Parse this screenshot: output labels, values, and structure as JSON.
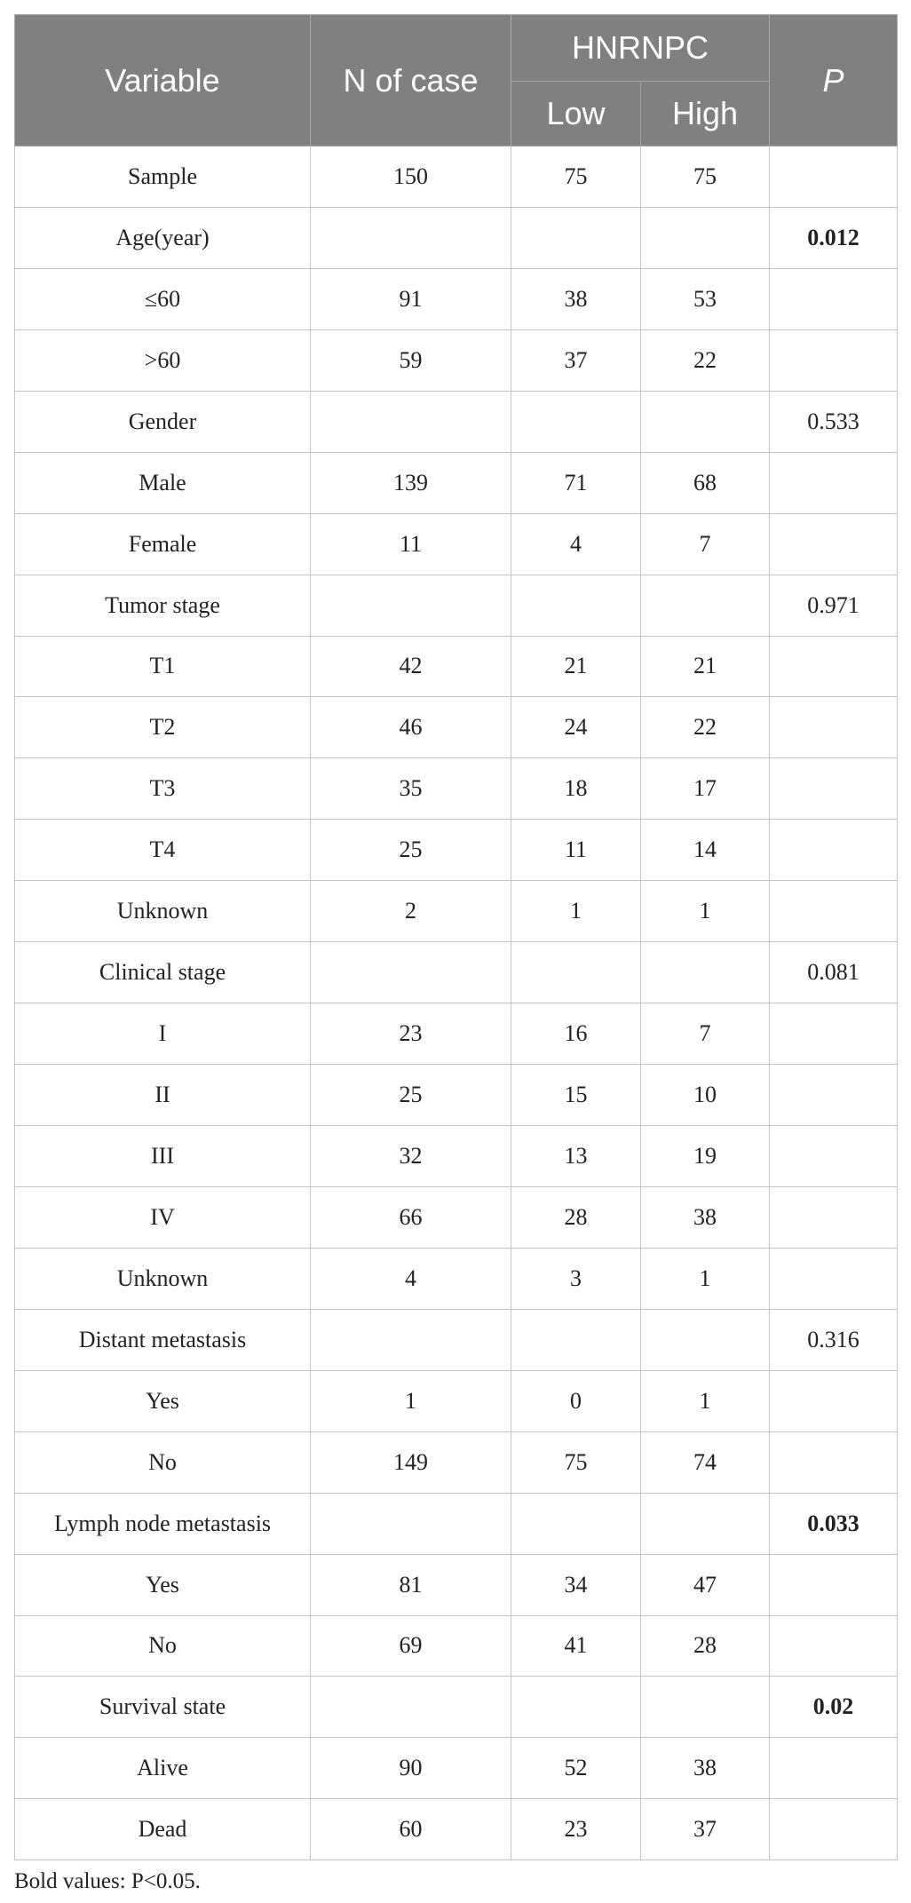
{
  "table": {
    "headers": {
      "variable": "Variable",
      "n_of_case": "N of case",
      "group": "HNRNPC",
      "low": "Low",
      "high": "High",
      "p": "P"
    },
    "rows": [
      {
        "variable": "Sample",
        "n": "150",
        "low": "75",
        "high": "75",
        "p": "",
        "p_bold": false
      },
      {
        "variable": "Age(year)",
        "n": "",
        "low": "",
        "high": "",
        "p": "0.012",
        "p_bold": true
      },
      {
        "variable": "≤60",
        "n": "91",
        "low": "38",
        "high": "53",
        "p": "",
        "p_bold": false
      },
      {
        "variable": ">60",
        "n": "59",
        "low": "37",
        "high": "22",
        "p": "",
        "p_bold": false
      },
      {
        "variable": "Gender",
        "n": "",
        "low": "",
        "high": "",
        "p": "0.533",
        "p_bold": false
      },
      {
        "variable": "Male",
        "n": "139",
        "low": "71",
        "high": "68",
        "p": "",
        "p_bold": false
      },
      {
        "variable": "Female",
        "n": "11",
        "low": "4",
        "high": "7",
        "p": "",
        "p_bold": false
      },
      {
        "variable": "Tumor stage",
        "n": "",
        "low": "",
        "high": "",
        "p": "0.971",
        "p_bold": false
      },
      {
        "variable": "T1",
        "n": "42",
        "low": "21",
        "high": "21",
        "p": "",
        "p_bold": false
      },
      {
        "variable": "T2",
        "n": "46",
        "low": "24",
        "high": "22",
        "p": "",
        "p_bold": false
      },
      {
        "variable": "T3",
        "n": "35",
        "low": "18",
        "high": "17",
        "p": "",
        "p_bold": false
      },
      {
        "variable": "T4",
        "n": "25",
        "low": "11",
        "high": "14",
        "p": "",
        "p_bold": false
      },
      {
        "variable": "Unknown",
        "n": "2",
        "low": "1",
        "high": "1",
        "p": "",
        "p_bold": false
      },
      {
        "variable": "Clinical stage",
        "n": "",
        "low": "",
        "high": "",
        "p": "0.081",
        "p_bold": false
      },
      {
        "variable": "I",
        "n": "23",
        "low": "16",
        "high": "7",
        "p": "",
        "p_bold": false
      },
      {
        "variable": "II",
        "n": "25",
        "low": "15",
        "high": "10",
        "p": "",
        "p_bold": false
      },
      {
        "variable": "III",
        "n": "32",
        "low": "13",
        "high": "19",
        "p": "",
        "p_bold": false
      },
      {
        "variable": "IV",
        "n": "66",
        "low": "28",
        "high": "38",
        "p": "",
        "p_bold": false
      },
      {
        "variable": "Unknown",
        "n": "4",
        "low": "3",
        "high": "1",
        "p": "",
        "p_bold": false
      },
      {
        "variable": "Distant metastasis",
        "n": "",
        "low": "",
        "high": "",
        "p": "0.316",
        "p_bold": false
      },
      {
        "variable": "Yes",
        "n": "1",
        "low": "0",
        "high": "1",
        "p": "",
        "p_bold": false
      },
      {
        "variable": "No",
        "n": "149",
        "low": "75",
        "high": "74",
        "p": "",
        "p_bold": false
      },
      {
        "variable": "Lymph node metastasis",
        "n": "",
        "low": "",
        "high": "",
        "p": "0.033",
        "p_bold": true
      },
      {
        "variable": "Yes",
        "n": "81",
        "low": "34",
        "high": "47",
        "p": "",
        "p_bold": false
      },
      {
        "variable": "No",
        "n": "69",
        "low": "41",
        "high": "28",
        "p": "",
        "p_bold": false
      },
      {
        "variable": "Survival state",
        "n": "",
        "low": "",
        "high": "",
        "p": "0.02",
        "p_bold": true
      },
      {
        "variable": "Alive",
        "n": "90",
        "low": "52",
        "high": "38",
        "p": "",
        "p_bold": false
      },
      {
        "variable": "Dead",
        "n": "60",
        "low": "23",
        "high": "37",
        "p": "",
        "p_bold": false
      }
    ]
  },
  "footnote": "Bold values: P<0.05.",
  "colors": {
    "header_bg": "#808080",
    "header_text": "#ffffff",
    "border": "#c4c4c4"
  }
}
